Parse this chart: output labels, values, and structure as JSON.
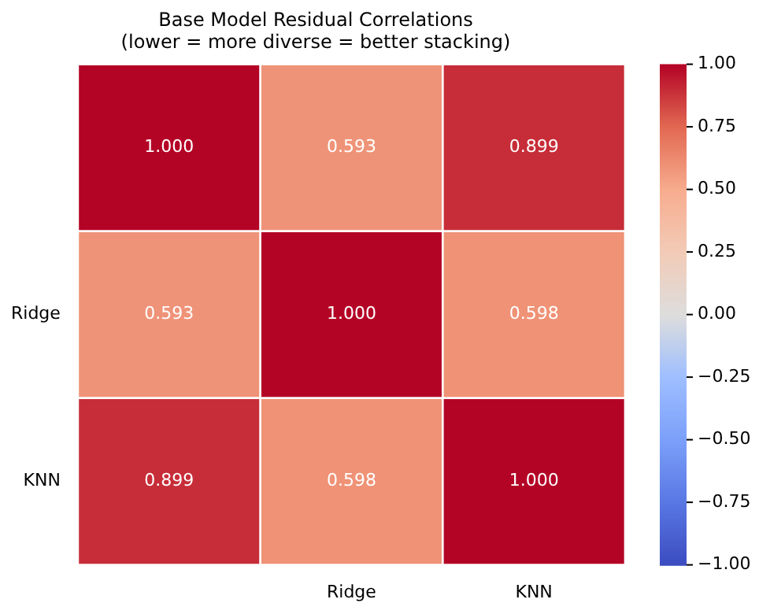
{
  "chart_data": {
    "type": "heatmap",
    "title": "Base Model Residual Correlations",
    "subtitle": "(lower = more diverse = better stacking)",
    "categories": [
      null,
      "Ridge",
      "KNN"
    ],
    "y_categories": [
      null,
      "Ridge",
      "KNN"
    ],
    "cells": [
      [
        1.0,
        0.593,
        0.899
      ],
      [
        0.593,
        1.0,
        0.598
      ],
      [
        0.899,
        0.598,
        1.0
      ]
    ],
    "cell_labels": [
      [
        "1.000",
        "0.593",
        "0.899"
      ],
      [
        "0.593",
        "1.000",
        "0.598"
      ],
      [
        "0.899",
        "0.598",
        "1.000"
      ]
    ],
    "clim": [
      -1,
      1
    ],
    "cticks": [
      {
        "value": -1,
        "label": "−1.00"
      },
      {
        "value": -0.75,
        "label": "−0.75"
      },
      {
        "value": -0.5,
        "label": "−0.50"
      },
      {
        "value": -0.25,
        "label": "−0.25"
      },
      {
        "value": 0,
        "label": "0.00"
      },
      {
        "value": 0.25,
        "label": "0.25"
      },
      {
        "value": 0.5,
        "label": "0.50"
      },
      {
        "value": 0.75,
        "label": "0.75"
      },
      {
        "value": 1,
        "label": "1.00"
      }
    ]
  }
}
